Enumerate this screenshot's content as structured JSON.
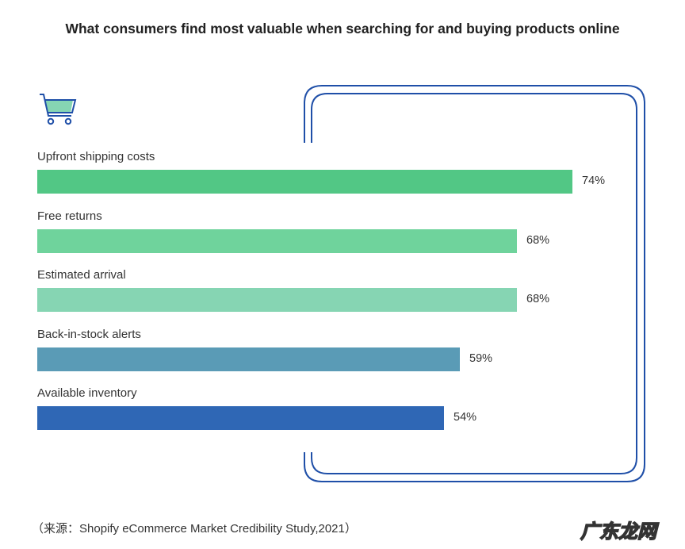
{
  "chart_data": {
    "type": "bar",
    "orientation": "horizontal",
    "title": "What consumers find most valuable when searching for and buying products online",
    "categories": [
      "Upfront shipping costs",
      "Free returns",
      "Estimated arrival",
      "Back-in-stock alerts",
      "Available inventory"
    ],
    "values": [
      74,
      68,
      68,
      59,
      54
    ],
    "value_labels": [
      "74%",
      "68%",
      "68%",
      "59%",
      "54%"
    ],
    "colors": [
      "#52c785",
      "#6fd39c",
      "#86d5b3",
      "#5a9bb6",
      "#2f67b5"
    ],
    "xlim": [
      0,
      100
    ],
    "source": "（来源：Shopify eCommerce Market Credibility Study,2021）"
  },
  "watermark": "广东龙网",
  "accent": "#1f4fa8"
}
